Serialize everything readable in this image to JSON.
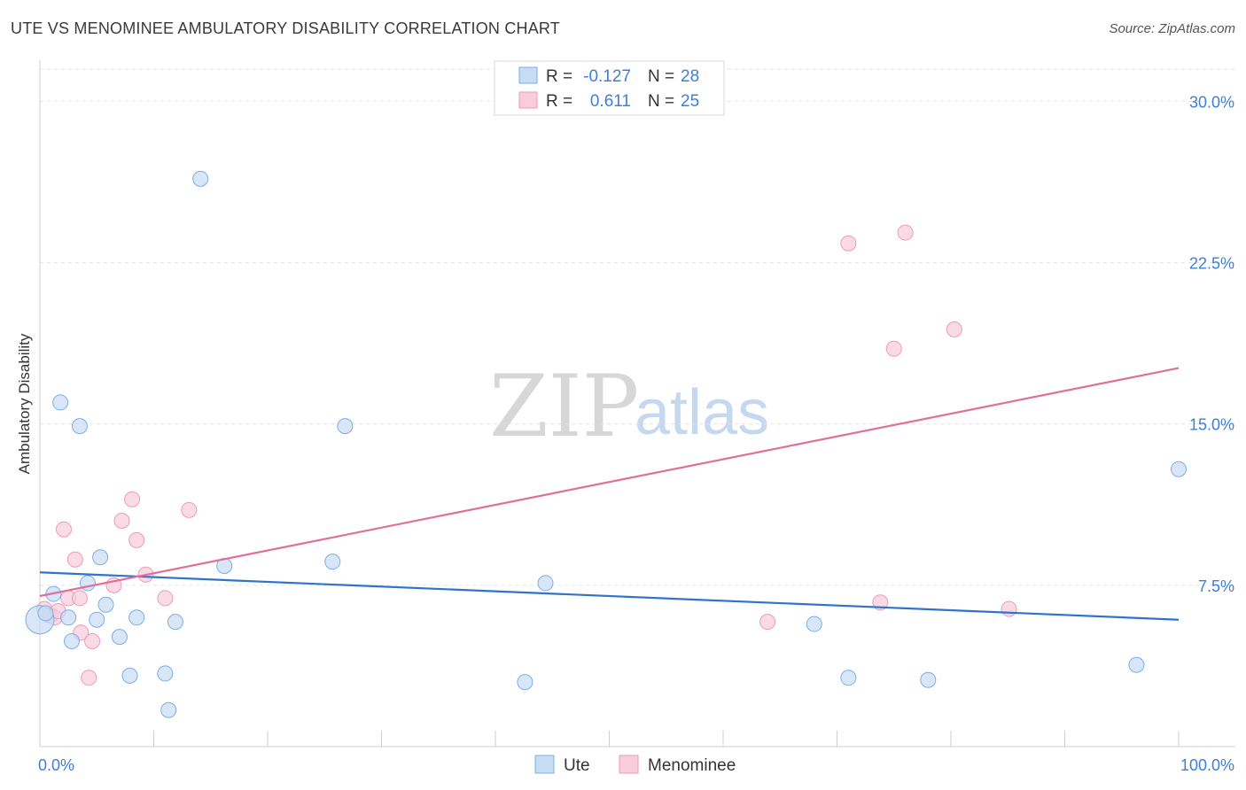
{
  "title": "UTE VS MENOMINEE AMBULATORY DISABILITY CORRELATION CHART",
  "source": "Source: ZipAtlas.com",
  "watermark": {
    "zip": "ZIP",
    "atlas": "atlas"
  },
  "colors": {
    "ute": "#7aaee8",
    "ute_fill": "#c7dcf5",
    "ute_line": "#2f74cc",
    "menominee": "#ef9ab6",
    "menominee_fill": "#f8ccda",
    "menominee_line": "#e0709a",
    "tick": "#3d7fd6",
    "grid": "#e2e2e2"
  },
  "legend": {
    "rows": [
      {
        "r_label": "R =",
        "r_value": "-0.127",
        "n_label": "N =",
        "n_value": "28"
      },
      {
        "r_label": "R =",
        "r_value": "0.611",
        "n_label": "N =",
        "n_value": "25"
      }
    ]
  },
  "chart_data": {
    "type": "scatter",
    "title": "UTE VS MENOMINEE AMBULATORY DISABILITY CORRELATION CHART",
    "xlabel": "",
    "ylabel": "Ambulatory Disability",
    "xlim": [
      0,
      100
    ],
    "ylim": [
      0,
      31.5
    ],
    "x_tick_labels": [
      "0.0%",
      "100.0%"
    ],
    "y_ticks": [
      7.5,
      15.0,
      22.5,
      30.0
    ],
    "y_tick_labels": [
      "7.5%",
      "15.0%",
      "22.5%",
      "30.0%"
    ],
    "grid": true,
    "legend_position": "top-center",
    "series": [
      {
        "name": "Ute",
        "r": -0.127,
        "n": 28,
        "trend": {
          "x": [
            0,
            100
          ],
          "y": [
            8.1,
            5.9
          ]
        },
        "points": [
          {
            "x": 0.0,
            "y": 5.9
          },
          {
            "x": 1.2,
            "y": 7.1
          },
          {
            "x": 1.8,
            "y": 16.0
          },
          {
            "x": 2.5,
            "y": 6.0
          },
          {
            "x": 2.8,
            "y": 4.9
          },
          {
            "x": 3.5,
            "y": 14.9
          },
          {
            "x": 4.2,
            "y": 7.6
          },
          {
            "x": 5.0,
            "y": 5.9
          },
          {
            "x": 5.3,
            "y": 8.8
          },
          {
            "x": 5.8,
            "y": 6.6
          },
          {
            "x": 7.0,
            "y": 5.1
          },
          {
            "x": 7.9,
            "y": 3.3
          },
          {
            "x": 8.5,
            "y": 6.0
          },
          {
            "x": 11.0,
            "y": 3.4
          },
          {
            "x": 11.3,
            "y": 1.7
          },
          {
            "x": 11.9,
            "y": 5.8
          },
          {
            "x": 14.1,
            "y": 26.4
          },
          {
            "x": 16.2,
            "y": 8.4
          },
          {
            "x": 25.7,
            "y": 8.6
          },
          {
            "x": 26.8,
            "y": 14.9
          },
          {
            "x": 42.6,
            "y": 3.0
          },
          {
            "x": 44.4,
            "y": 7.6
          },
          {
            "x": 68.0,
            "y": 5.7
          },
          {
            "x": 71.0,
            "y": 3.2
          },
          {
            "x": 78.0,
            "y": 3.1
          },
          {
            "x": 96.3,
            "y": 3.8
          },
          {
            "x": 100.0,
            "y": 12.9
          },
          {
            "x": 0.5,
            "y": 6.2
          }
        ]
      },
      {
        "name": "Menominee",
        "r": 0.611,
        "n": 25,
        "trend": {
          "x": [
            0,
            100
          ],
          "y": [
            7.0,
            17.6
          ]
        },
        "points": [
          {
            "x": 0.4,
            "y": 6.4
          },
          {
            "x": 0.9,
            "y": 6.1
          },
          {
            "x": 1.3,
            "y": 6.0
          },
          {
            "x": 2.1,
            "y": 10.1
          },
          {
            "x": 2.5,
            "y": 6.9
          },
          {
            "x": 3.1,
            "y": 8.7
          },
          {
            "x": 3.5,
            "y": 6.9
          },
          {
            "x": 3.6,
            "y": 5.3
          },
          {
            "x": 4.3,
            "y": 3.2
          },
          {
            "x": 4.6,
            "y": 4.9
          },
          {
            "x": 6.5,
            "y": 7.5
          },
          {
            "x": 7.2,
            "y": 10.5
          },
          {
            "x": 8.1,
            "y": 11.5
          },
          {
            "x": 8.5,
            "y": 9.6
          },
          {
            "x": 9.3,
            "y": 8.0
          },
          {
            "x": 11.0,
            "y": 6.9
          },
          {
            "x": 13.1,
            "y": 11.0
          },
          {
            "x": 63.9,
            "y": 5.8
          },
          {
            "x": 71.0,
            "y": 23.4
          },
          {
            "x": 73.8,
            "y": 6.7
          },
          {
            "x": 75.0,
            "y": 18.5
          },
          {
            "x": 76.0,
            "y": 23.9
          },
          {
            "x": 80.3,
            "y": 19.4
          },
          {
            "x": 85.1,
            "y": 6.4
          },
          {
            "x": 1.6,
            "y": 6.3
          }
        ]
      }
    ]
  }
}
